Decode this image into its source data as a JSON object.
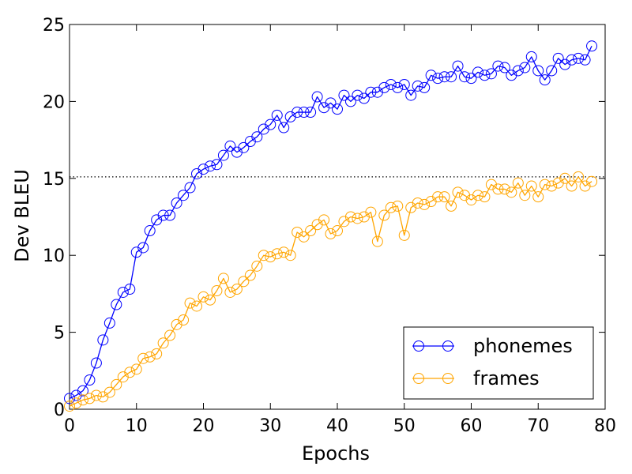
{
  "chart_data": {
    "type": "line",
    "xlabel": "Epochs",
    "ylabel": "Dev BLEU",
    "xlim": [
      0,
      80
    ],
    "ylim": [
      0,
      25
    ],
    "xticks": [
      "0",
      "10",
      "20",
      "30",
      "40",
      "50",
      "60",
      "70",
      "80"
    ],
    "yticks": [
      "0",
      "5",
      "10",
      "15",
      "20",
      "25"
    ],
    "grid": false,
    "legend_position": "lower-right",
    "reference_line": {
      "y": 15.1,
      "style": "dotted",
      "color": "#000000"
    },
    "series": [
      {
        "name": "phonemes",
        "color": "#0000ff",
        "marker": "open-circle",
        "x": [
          0,
          1,
          2,
          3,
          4,
          5,
          6,
          7,
          8,
          9,
          10,
          11,
          12,
          13,
          14,
          15,
          16,
          17,
          18,
          19,
          20,
          21,
          22,
          23,
          24,
          25,
          26,
          27,
          28,
          29,
          30,
          31,
          32,
          33,
          34,
          35,
          36,
          37,
          38,
          39,
          40,
          41,
          42,
          43,
          44,
          45,
          46,
          47,
          48,
          49,
          50,
          51,
          52,
          53,
          54,
          55,
          56,
          57,
          58,
          59,
          60,
          61,
          62,
          63,
          64,
          65,
          66,
          67,
          68,
          69,
          70,
          71,
          72,
          73,
          74,
          75,
          76,
          77,
          78
        ],
        "y": [
          0.7,
          0.9,
          1.2,
          1.9,
          3.0,
          4.5,
          5.6,
          6.8,
          7.6,
          7.8,
          10.2,
          10.5,
          11.6,
          12.3,
          12.6,
          12.6,
          13.4,
          13.9,
          14.4,
          15.3,
          15.6,
          15.8,
          15.9,
          16.5,
          17.1,
          16.7,
          17.0,
          17.4,
          17.7,
          18.2,
          18.5,
          19.1,
          18.3,
          19.0,
          19.3,
          19.3,
          19.3,
          20.3,
          19.6,
          19.9,
          19.5,
          20.4,
          20.0,
          20.4,
          20.2,
          20.6,
          20.6,
          20.9,
          21.1,
          20.9,
          21.1,
          20.4,
          21.0,
          20.9,
          21.7,
          21.5,
          21.6,
          21.6,
          22.3,
          21.6,
          21.5,
          21.9,
          21.7,
          21.8,
          22.3,
          22.2,
          21.7,
          22.0,
          22.2,
          22.9,
          22.0,
          21.4,
          22.0,
          22.8,
          22.4,
          22.7,
          22.8,
          22.7,
          23.6
        ]
      },
      {
        "name": "frames",
        "color": "#ffa500",
        "marker": "open-circle",
        "x": [
          0,
          1,
          2,
          3,
          4,
          5,
          6,
          7,
          8,
          9,
          10,
          11,
          12,
          13,
          14,
          15,
          16,
          17,
          18,
          19,
          20,
          21,
          22,
          23,
          24,
          25,
          26,
          27,
          28,
          29,
          30,
          31,
          32,
          33,
          34,
          35,
          36,
          37,
          38,
          39,
          40,
          41,
          42,
          43,
          44,
          45,
          46,
          47,
          48,
          49,
          50,
          51,
          52,
          53,
          54,
          55,
          56,
          57,
          58,
          59,
          60,
          61,
          62,
          63,
          64,
          65,
          66,
          67,
          68,
          69,
          70,
          71,
          72,
          73,
          74,
          75,
          76,
          77,
          78
        ],
        "y": [
          0.2,
          0.4,
          0.6,
          0.7,
          0.9,
          0.8,
          1.1,
          1.6,
          2.1,
          2.4,
          2.6,
          3.3,
          3.4,
          3.6,
          4.3,
          4.8,
          5.5,
          5.8,
          6.9,
          6.7,
          7.3,
          7.1,
          7.7,
          8.5,
          7.6,
          7.8,
          8.3,
          8.7,
          9.3,
          10.0,
          9.9,
          10.1,
          10.2,
          10.0,
          11.5,
          11.2,
          11.6,
          12.0,
          12.3,
          11.4,
          11.6,
          12.2,
          12.5,
          12.4,
          12.5,
          12.8,
          10.9,
          12.6,
          13.1,
          13.2,
          11.3,
          13.1,
          13.4,
          13.3,
          13.5,
          13.8,
          13.8,
          13.2,
          14.1,
          13.9,
          13.6,
          13.9,
          13.8,
          14.6,
          14.3,
          14.3,
          14.1,
          14.7,
          13.9,
          14.5,
          13.8,
          14.6,
          14.5,
          14.7,
          15.0,
          14.5,
          15.1,
          14.5,
          14.8
        ]
      }
    ]
  }
}
